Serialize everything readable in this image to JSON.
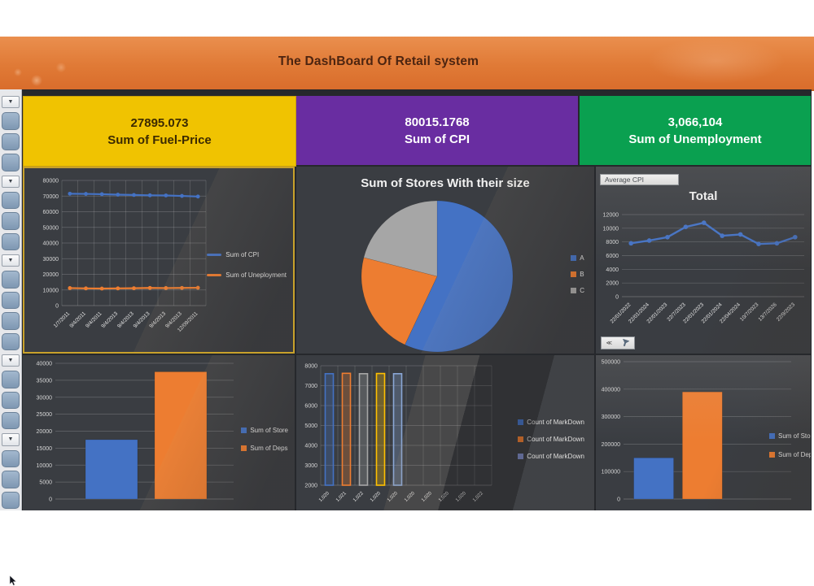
{
  "header": {
    "title": "The DashBoard Of Retail system"
  },
  "sidebar": {
    "dropdown_icon": "▼",
    "groups": [
      3,
      3,
      4,
      3,
      3
    ]
  },
  "kpis": [
    {
      "value": "27895.073",
      "label": "Sum of Fuel-Price",
      "bg": "#f0c301"
    },
    {
      "value": "80015.1768",
      "label": "Sum of CPI",
      "bg": "#692da1"
    },
    {
      "value": "3,066,104",
      "label": "Sum of Unemployment",
      "bg": "#0aa050"
    }
  ],
  "field_button": {
    "label": "Average CPI"
  },
  "filter_widget": {
    "collapse_label": "≪"
  },
  "colors": {
    "header_orange": "#e07a36",
    "series_blue": "#4472c4",
    "series_orange": "#ed7d31",
    "series_gray": "#a6a6a6",
    "series_yellow": "#ffc000",
    "series_periwinkle": "#7b89c4"
  },
  "chart_data": [
    {
      "id": "c1",
      "type": "line",
      "title": "",
      "x": [
        "1/7/2011",
        "9/4/2011",
        "9/4/2011",
        "9/4/2013",
        "9/4/2013",
        "9/4/2013",
        "9/4/2013",
        "9/4/2013",
        "12/09/2011"
      ],
      "series": [
        {
          "name": "Sum of CPI",
          "color": "#4472c4",
          "values": [
            71500,
            71400,
            71200,
            70900,
            70700,
            70500,
            70400,
            70100,
            69700
          ]
        },
        {
          "name": "Sum of Uneployment",
          "color": "#ed7d31",
          "values": [
            11200,
            11000,
            10900,
            11000,
            11100,
            11300,
            11200,
            11300,
            11400
          ]
        }
      ],
      "ylim": [
        0,
        80000
      ],
      "yticks": [
        0,
        10000,
        20000,
        30000,
        40000,
        50000,
        60000,
        70000,
        80000
      ],
      "grid": "both",
      "legend_position": "right"
    },
    {
      "id": "pie",
      "type": "pie",
      "title": "Sum of Stores With their size",
      "labels": [
        "A",
        "B",
        "C"
      ],
      "values": [
        57,
        22,
        21
      ],
      "colors": [
        "#4472c4",
        "#ed7d31",
        "#a6a6a6"
      ],
      "legend_position": "right"
    },
    {
      "id": "c3",
      "type": "line",
      "title": "Total",
      "x": [
        "22/01/2022",
        "22/01/2024",
        "22/01/2023",
        "22/7/2023",
        "22/01/2023",
        "22/01/2024",
        "22/04/2024",
        "10/7/2023",
        "13/7/2026",
        "22/9/2023"
      ],
      "series": [
        {
          "name": "Total",
          "color": "#4472c4",
          "values": [
            7800,
            8200,
            8700,
            10200,
            10800,
            8900,
            9100,
            7700,
            7800,
            8700
          ]
        }
      ],
      "ylim": [
        0,
        12000
      ],
      "yticks": [
        0,
        2000,
        4000,
        6000,
        8000,
        10000,
        12000
      ],
      "grid": "h",
      "legend_position": "none"
    },
    {
      "id": "c4",
      "type": "bar",
      "title": "",
      "bars": [
        {
          "label": "Sum of Store",
          "color": "#4472c4",
          "value": 17500
        },
        {
          "label": "Sum of Deps",
          "color": "#ed7d31",
          "value": 37500
        }
      ],
      "ylim": [
        0,
        40000
      ],
      "yticks": [
        0,
        5000,
        10000,
        15000,
        20000,
        25000,
        30000,
        35000,
        40000
      ],
      "grid": "h",
      "legend_position": "right"
    },
    {
      "id": "c5",
      "type": "bar",
      "title": "",
      "x": [
        "1,020",
        "1,021",
        "1,022",
        "1,020",
        "1,020",
        "1,020",
        "1,020",
        "1,020",
        "1,020",
        "1,022"
      ],
      "bars": [
        {
          "label": "",
          "color": "#4472c4",
          "value": 7600
        },
        {
          "label": "",
          "color": "#ed7d31",
          "value": 7620
        },
        {
          "label": "",
          "color": "#a6a6a6",
          "value": 7600
        },
        {
          "label": "",
          "color": "#ffc000",
          "value": 7610
        },
        {
          "label": "",
          "color": "#8aa7d6",
          "value": 7600
        }
      ],
      "legend_labels": [
        {
          "label": "Count of MarkDown",
          "color": "#4472c4"
        },
        {
          "label": "Count of MarkDown",
          "color": "#ed7d31"
        },
        {
          "label": "Count of MarkDown",
          "color": "#7b89c4"
        }
      ],
      "ylim": [
        2000,
        8000
      ],
      "yticks": [
        2000,
        3000,
        4000,
        5000,
        6000,
        7000,
        8000
      ],
      "grid": "both",
      "legend_position": "right",
      "bar_style": "outline"
    },
    {
      "id": "c6",
      "type": "bar",
      "title": "",
      "bars": [
        {
          "label": "Sum of Sto",
          "color": "#4472c4",
          "value": 150000
        },
        {
          "label": "Sum of Dep",
          "color": "#ed7d31",
          "value": 390000
        }
      ],
      "ylim": [
        0,
        500000
      ],
      "yticks": [
        0,
        100000,
        200000,
        300000,
        400000,
        500000
      ],
      "grid": "h",
      "legend_position": "right-clipped"
    }
  ]
}
